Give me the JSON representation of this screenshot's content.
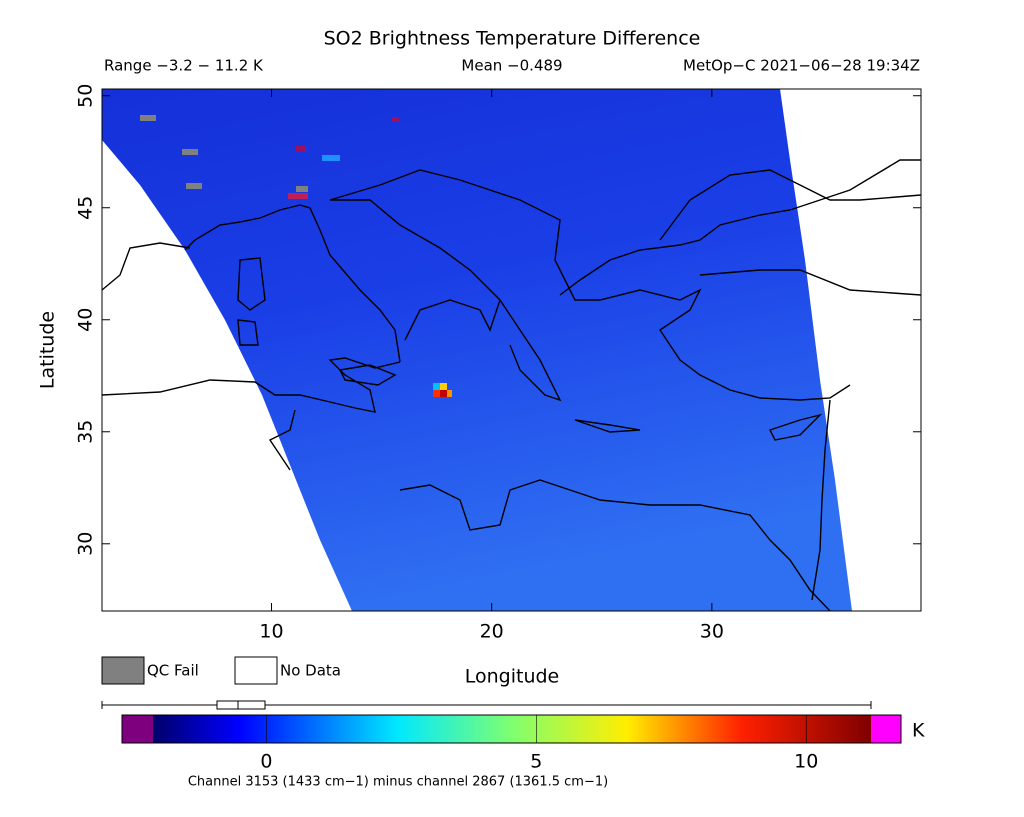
{
  "title": "SO2 Brightness Temperature Difference",
  "range_label": "Range −3.2 − 11.2 K",
  "mean_label": "Mean −0.489",
  "source_label": "MetOp−C 2021−06−28 19:34Z",
  "map": {
    "xlabel": "Longitude",
    "ylabel": "Latitude",
    "xlim": [
      2.3,
      39.5
    ],
    "ylim": [
      27,
      50.3
    ],
    "xticks": [
      10,
      20,
      30
    ],
    "yticks": [
      30,
      35,
      40,
      45,
      50
    ]
  },
  "legend": {
    "qc_fail": "QC Fail",
    "no_data": "No Data"
  },
  "colorbar": {
    "lim": [
      -2.1,
      11.2
    ],
    "ticks": [
      0,
      5,
      10
    ],
    "unit": "K",
    "note": "Channel 3153 (1433 cm−1) minus channel 2867 (1361.5 cm−1)"
  }
}
